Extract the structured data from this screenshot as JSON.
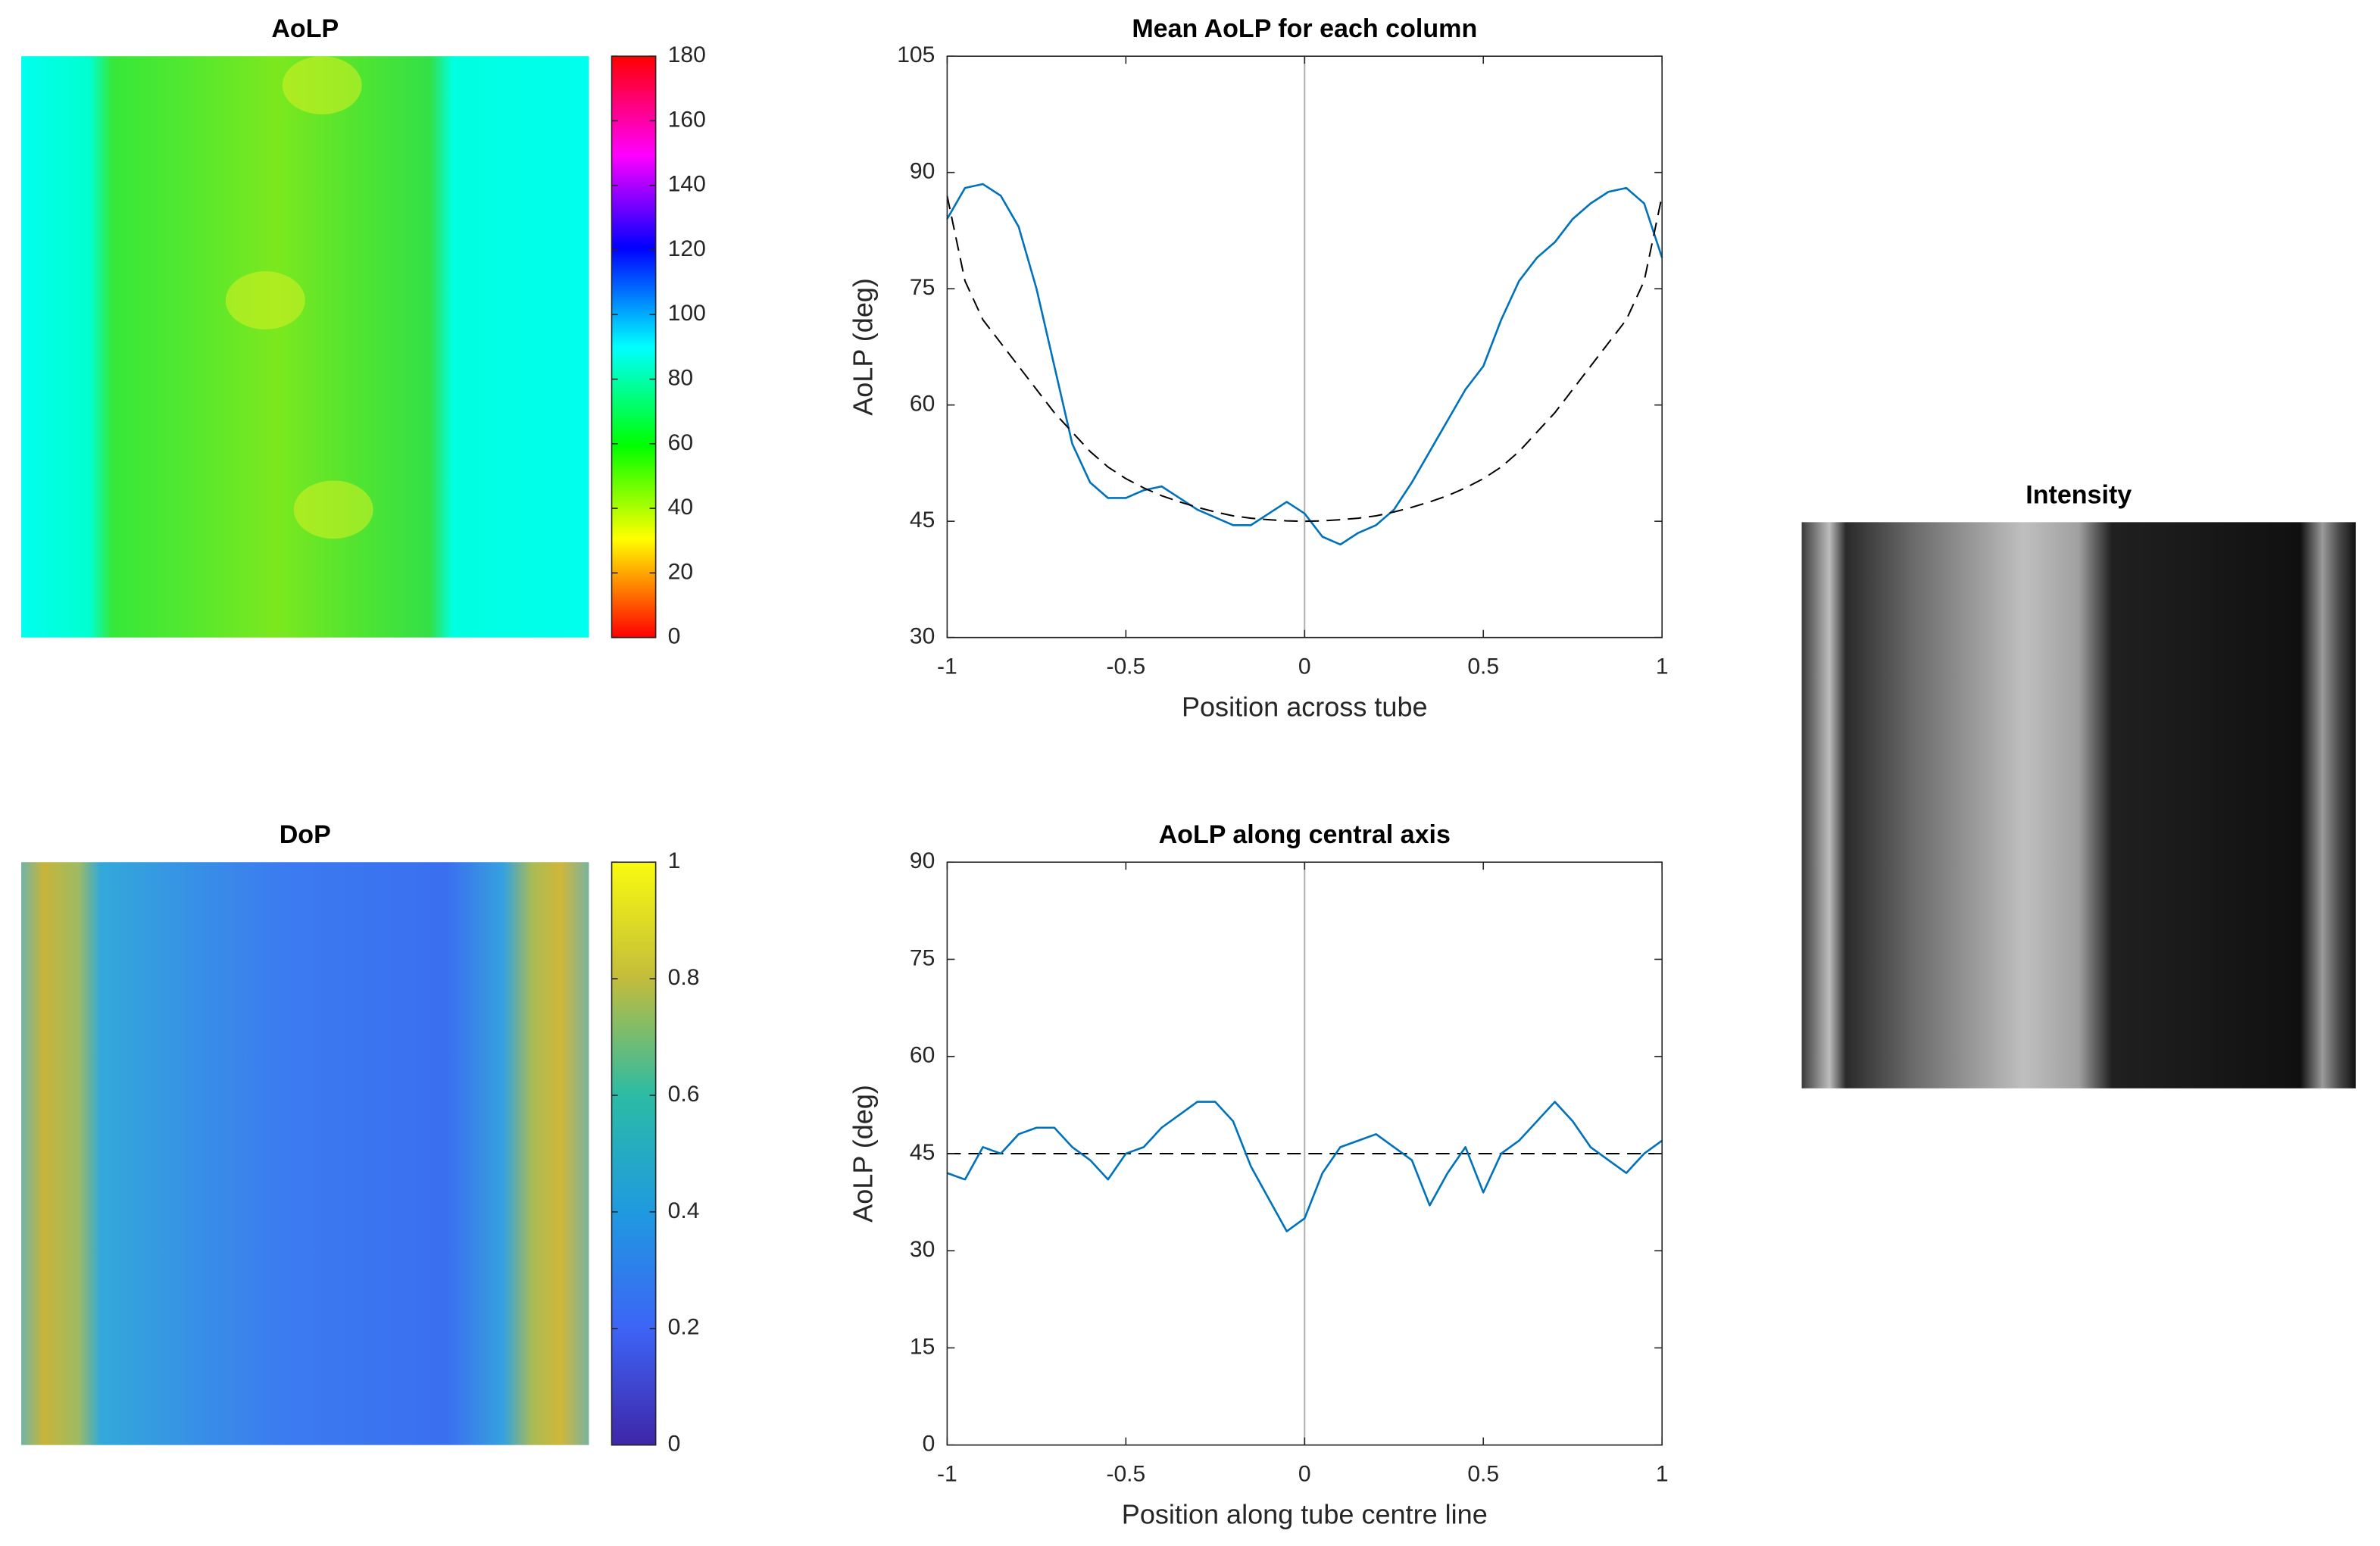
{
  "chart_data": [
    {
      "type": "image",
      "title": "AoLP",
      "colormap": "hsv",
      "clim": [
        0,
        180
      ],
      "cticks": [
        0,
        20,
        40,
        60,
        80,
        100,
        120,
        140,
        160,
        180
      ]
    },
    {
      "type": "line",
      "title": "Mean AoLP for each column",
      "xlabel": "Position across tube",
      "ylabel": "AoLP (deg)",
      "xlim": [
        -1,
        1
      ],
      "xticks": [
        -1,
        -0.5,
        0,
        0.5,
        1
      ],
      "ylim": [
        30,
        105
      ],
      "yticks": [
        30,
        45,
        60,
        75,
        90,
        105
      ],
      "vline": 0,
      "x": [
        -1,
        -0.95,
        -0.9,
        -0.85,
        -0.8,
        -0.75,
        -0.7,
        -0.65,
        -0.6,
        -0.55,
        -0.5,
        -0.45,
        -0.4,
        -0.35,
        -0.3,
        -0.25,
        -0.2,
        -0.15,
        -0.1,
        -0.05,
        0,
        0.05,
        0.1,
        0.15,
        0.2,
        0.25,
        0.3,
        0.35,
        0.4,
        0.45,
        0.5,
        0.55,
        0.6,
        0.65,
        0.7,
        0.75,
        0.8,
        0.85,
        0.9,
        0.95,
        1
      ],
      "series": [
        {
          "color": "#0072bd",
          "values": [
            84,
            88,
            88.5,
            87,
            83,
            75,
            65,
            55,
            50,
            48,
            48,
            49,
            49.5,
            48,
            46.5,
            45.5,
            44.5,
            44.5,
            46,
            47.5,
            46,
            43,
            42,
            43.5,
            44.5,
            46.5,
            50,
            54,
            58,
            62,
            65,
            71,
            76,
            79,
            81,
            84,
            86,
            87.5,
            88,
            86,
            79
          ]
        },
        {
          "color": "#000000",
          "dash": true,
          "values": [
            87,
            76,
            71,
            68,
            65,
            62,
            59,
            56.5,
            54,
            52,
            50.5,
            49.3,
            48.3,
            47.5,
            46.8,
            46.2,
            45.7,
            45.4,
            45.2,
            45.05,
            45,
            45.05,
            45.2,
            45.4,
            45.7,
            46.2,
            46.8,
            47.5,
            48.3,
            49.3,
            50.5,
            52,
            54,
            56.5,
            59,
            62,
            65,
            68,
            71,
            76,
            87
          ]
        }
      ]
    },
    {
      "type": "image",
      "title": "DoP",
      "colormap": "parula",
      "clim": [
        0,
        1
      ],
      "cticks": [
        0,
        0.2,
        0.4,
        0.6,
        0.8,
        1
      ]
    },
    {
      "type": "line",
      "title": "AoLP along central axis",
      "xlabel": "Position along tube centre line",
      "ylabel": "AoLP (deg)",
      "xlim": [
        -1,
        1
      ],
      "xticks": [
        -1,
        -0.5,
        0,
        0.5,
        1
      ],
      "ylim": [
        0,
        90
      ],
      "yticks": [
        0,
        15,
        30,
        45,
        60,
        75,
        90
      ],
      "vline": 0,
      "hline": 45,
      "x": [
        -1,
        -0.95,
        -0.9,
        -0.85,
        -0.8,
        -0.75,
        -0.7,
        -0.65,
        -0.6,
        -0.55,
        -0.5,
        -0.45,
        -0.4,
        -0.35,
        -0.3,
        -0.25,
        -0.2,
        -0.15,
        -0.1,
        -0.05,
        0,
        0.05,
        0.1,
        0.15,
        0.2,
        0.25,
        0.3,
        0.35,
        0.4,
        0.45,
        0.5,
        0.55,
        0.6,
        0.65,
        0.7,
        0.75,
        0.8,
        0.85,
        0.9,
        0.95,
        1
      ],
      "series": [
        {
          "color": "#0072bd",
          "values": [
            42,
            41,
            46,
            45,
            48,
            49,
            49,
            46,
            44,
            41,
            45,
            46,
            49,
            51,
            53,
            53,
            50,
            43,
            38,
            33,
            35,
            42,
            46,
            47,
            48,
            46,
            44,
            37,
            42,
            46,
            39,
            45,
            47,
            50,
            53,
            50,
            46,
            44,
            42,
            45,
            47
          ]
        }
      ]
    },
    {
      "type": "image",
      "title": "Intensity",
      "colormap": "gray"
    }
  ]
}
